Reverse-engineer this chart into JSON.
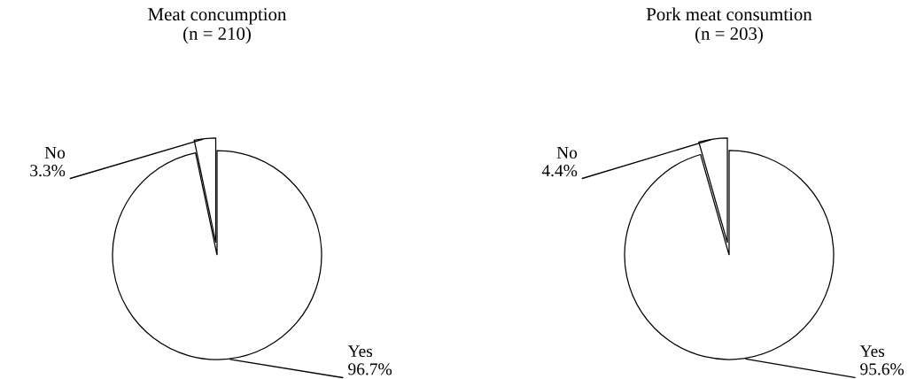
{
  "chart_data": [
    {
      "type": "pie",
      "title": "Meat concumption\n(n = 210)",
      "categories": [
        "No",
        "Yes"
      ],
      "values": [
        3.3,
        96.7
      ],
      "value_labels": [
        "3.3%",
        "96.7%"
      ],
      "colors": [
        "#ffffff",
        "#ffffff"
      ]
    },
    {
      "type": "pie",
      "title": "Pork meat consumtion\n(n = 203)",
      "categories": [
        "No",
        "Yes"
      ],
      "values": [
        4.4,
        95.6
      ],
      "value_labels": [
        "4.4%",
        "95.6%"
      ],
      "colors": [
        "#ffffff",
        "#ffffff"
      ]
    }
  ]
}
